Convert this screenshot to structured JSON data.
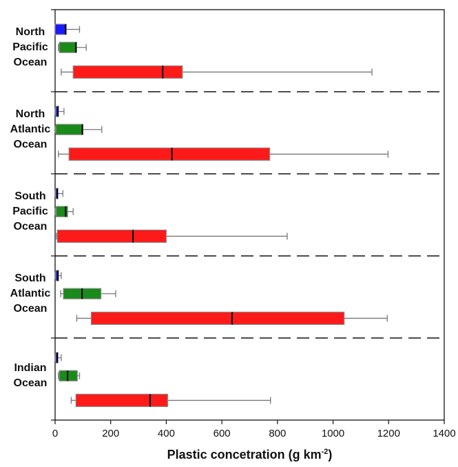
{
  "chart_data": {
    "type": "box",
    "orientation": "horizontal",
    "xlabel": {
      "main": "Plastic concetration (g km",
      "exponent": "-2",
      "close": ")"
    },
    "xlim": [
      0,
      1400
    ],
    "xticks": [
      "0",
      "200",
      "400",
      "600",
      "800",
      "1000",
      "1200",
      "1400"
    ],
    "box_colors": [
      "#1a1aff",
      "#1a8a1a",
      "#ff1a1a"
    ],
    "groups": [
      {
        "label_lines": [
          "North",
          "Pacific",
          "Ocean"
        ],
        "boxes": [
          {
            "min": 0,
            "q1": 0,
            "median": 38,
            "q3": 40,
            "max": 88
          },
          {
            "min": 12,
            "q1": 15,
            "median": 75,
            "q3": 77,
            "max": 112
          },
          {
            "min": 22,
            "q1": 65,
            "median": 387,
            "q3": 458,
            "max": 1140
          }
        ]
      },
      {
        "label_lines": [
          "North",
          "Atlantic",
          "Ocean"
        ],
        "boxes": [
          {
            "min": 0,
            "q1": 2,
            "median": 10,
            "q3": 12,
            "max": 32
          },
          {
            "min": 0,
            "q1": 3,
            "median": 98,
            "q3": 100,
            "max": 168
          },
          {
            "min": 12,
            "q1": 50,
            "median": 420,
            "q3": 772,
            "max": 1198
          }
        ]
      },
      {
        "label_lines": [
          "South",
          "Pacific",
          "Ocean"
        ],
        "boxes": [
          {
            "min": 0,
            "q1": 2,
            "median": 8,
            "q3": 10,
            "max": 28
          },
          {
            "min": 0,
            "q1": 4,
            "median": 38,
            "q3": 45,
            "max": 65
          },
          {
            "min": 5,
            "q1": 8,
            "median": 280,
            "q3": 400,
            "max": 835
          }
        ]
      },
      {
        "label_lines": [
          "South",
          "Atlantic",
          "Ocean"
        ],
        "boxes": [
          {
            "min": 0,
            "q1": 2,
            "median": 10,
            "q3": 12,
            "max": 22
          },
          {
            "min": 20,
            "q1": 30,
            "median": 97,
            "q3": 165,
            "max": 218
          },
          {
            "min": 78,
            "q1": 130,
            "median": 637,
            "q3": 1040,
            "max": 1195
          }
        ]
      },
      {
        "label_lines": [
          "Indian",
          "Ocean"
        ],
        "boxes": [
          {
            "min": 0,
            "q1": 2,
            "median": 8,
            "q3": 10,
            "max": 22
          },
          {
            "min": 12,
            "q1": 15,
            "median": 45,
            "q3": 80,
            "max": 88
          },
          {
            "min": 58,
            "q1": 75,
            "median": 342,
            "q3": 405,
            "max": 775
          }
        ]
      }
    ]
  }
}
